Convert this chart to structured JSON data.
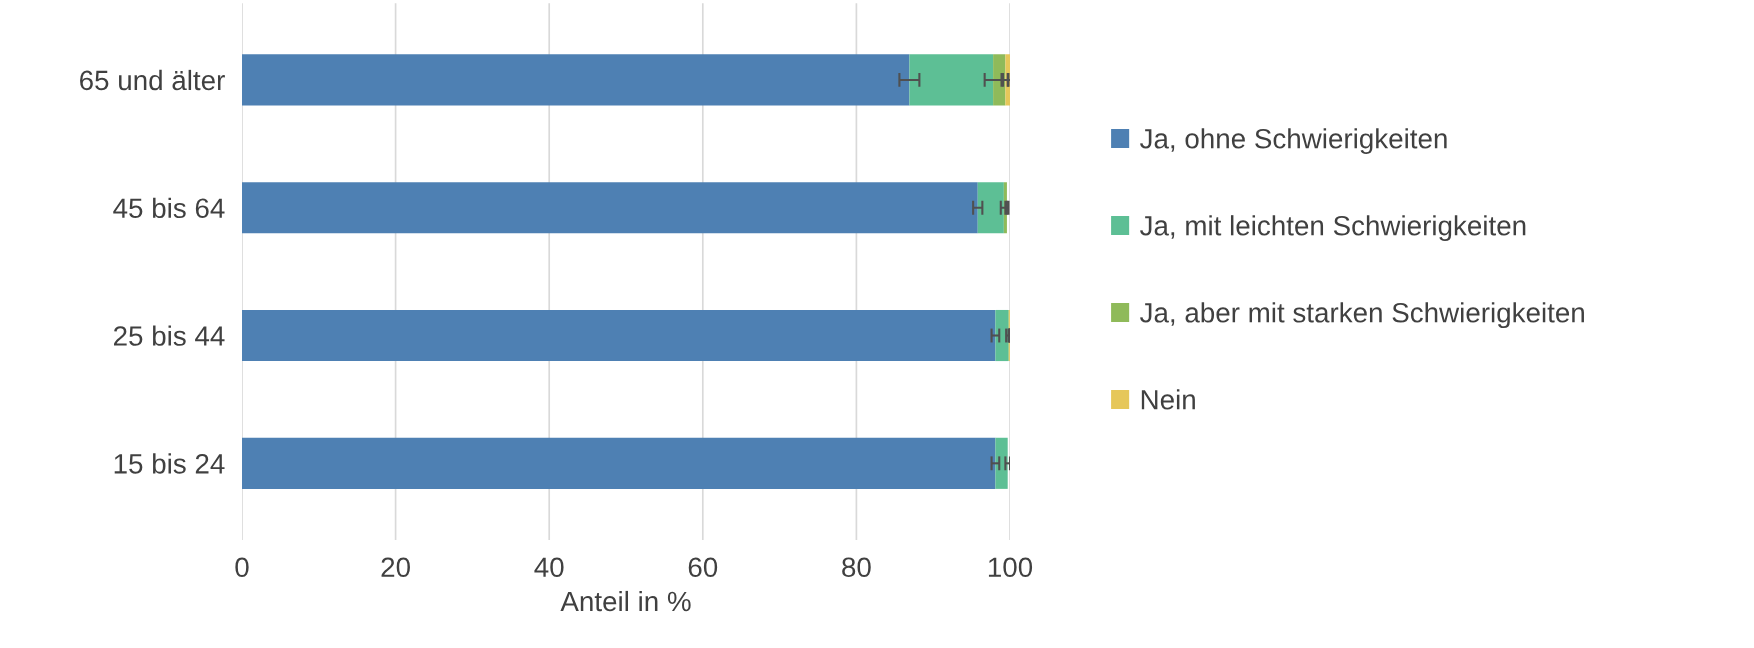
{
  "chart_data": {
    "type": "bar",
    "orientation": "horizontal",
    "stacked": true,
    "xlabel": "Anteil in %",
    "categories": [
      "65 und älter",
      "45 bis 64",
      "25 bis 44",
      "15 bis 24"
    ],
    "series": [
      {
        "name": "Ja, ohne Schwierigkeiten",
        "color": "#4e80b3",
        "values": [
          86.9,
          95.8,
          98.1,
          98.1
        ],
        "errors": [
          1.3,
          0.6,
          0.5,
          0.5
        ]
      },
      {
        "name": "Ja, mit leichten Schwierigkeiten",
        "color": "#5dbf95",
        "values": [
          10.9,
          3.4,
          1.7,
          1.6
        ],
        "errors": [
          1.1,
          0.4,
          0.3,
          0.3
        ]
      },
      {
        "name": "Ja, aber mit starken Schwierigkeiten",
        "color": "#8fba5a",
        "values": [
          1.6,
          0.4,
          0.1,
          null
        ],
        "errors": [
          0.3,
          0.2,
          0.1,
          null
        ]
      },
      {
        "name": "Nein",
        "color": "#e6c75a",
        "values": [
          0.6,
          null,
          0.1,
          null
        ],
        "errors": [
          0.2,
          null,
          0.1,
          null
        ]
      }
    ],
    "xlim": [
      0,
      100
    ],
    "xticks": [
      0,
      20,
      40,
      60,
      80,
      100
    ],
    "grid": "x",
    "legend": "right"
  }
}
